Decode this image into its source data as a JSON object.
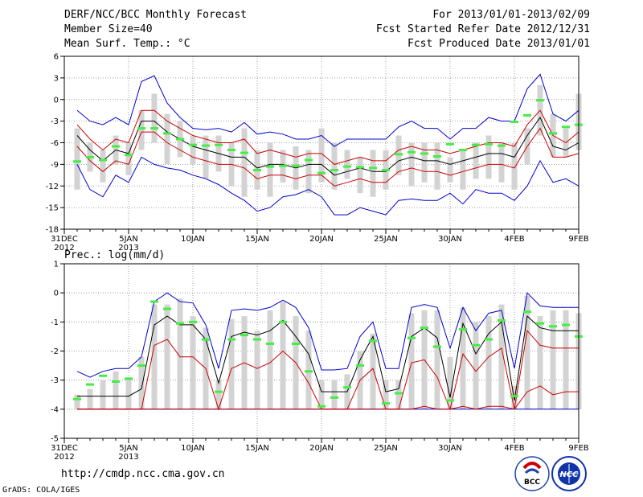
{
  "header": {
    "title": "DERF/NCC/BCC Monthly Forecast",
    "member_size": "Member Size=40",
    "period": "For 2013/01/01-2013/02/09",
    "fcst_started": "Fcst Started Refer Date 2012/12/31",
    "fcst_produced": "Fcst Produced Date 2013/01/01"
  },
  "footer": {
    "url": "http://cmdp.ncc.cma.gov.cn",
    "grads": "GrADS: COLA/IGES",
    "logo_bcc": "BCC",
    "logo_ncc": "NCC"
  },
  "colors": {
    "max_line": "#0000cc",
    "upper_line": "#cc0000",
    "mean_line": "#000000",
    "lower_line": "#cc0000",
    "min_line": "#0000cc",
    "box": "#d3d3d3",
    "marker": "#44ee44"
  },
  "chart_data": [
    {
      "type": "line",
      "title": "Mean Surf. Temp.: °C",
      "xlabel": "",
      "ylabel": "Mean Surf. Temp.: °C",
      "ylim": [
        -18,
        6
      ],
      "yticks": [
        "6",
        "3",
        "0",
        "-3",
        "-6",
        "-9",
        "-12",
        "-15",
        "-18"
      ],
      "yticks_values": [
        6,
        3,
        0,
        -3,
        -6,
        -9,
        -12,
        -15,
        -18
      ],
      "xticks": [
        {
          "day": 0,
          "label": "31DEC",
          "sub": "2012"
        },
        {
          "day": 5,
          "label": "5JAN",
          "sub": "2013"
        },
        {
          "day": 10,
          "label": "10JAN",
          "sub": ""
        },
        {
          "day": 15,
          "label": "15JAN",
          "sub": ""
        },
        {
          "day": 20,
          "label": "20JAN",
          "sub": ""
        },
        {
          "day": 25,
          "label": "25JAN",
          "sub": ""
        },
        {
          "day": 30,
          "label": "30JAN",
          "sub": ""
        },
        {
          "day": 35,
          "label": "4FEB",
          "sub": ""
        },
        {
          "day": 40,
          "label": "9FEB",
          "sub": ""
        }
      ],
      "x_days": [
        1,
        2,
        3,
        4,
        5,
        6,
        7,
        8,
        9,
        10,
        11,
        12,
        13,
        14,
        15,
        16,
        17,
        18,
        19,
        20,
        21,
        22,
        23,
        24,
        25,
        26,
        27,
        28,
        29,
        30,
        31,
        32,
        33,
        34,
        35,
        36,
        37,
        38,
        39,
        40
      ],
      "series": [
        {
          "name": "max",
          "values": [
            -1.5,
            -3,
            -3.5,
            -2.5,
            -3.5,
            2.5,
            3.3,
            -0.5,
            -2.5,
            -4,
            -4.2,
            -4,
            -4.5,
            -3.2,
            -4.8,
            -4.5,
            -4.8,
            -5.5,
            -5.5,
            -5,
            -6.5,
            -5.5,
            -5.5,
            -5.5,
            -5.5,
            -3.8,
            -3,
            -4,
            -4,
            -5.5,
            -4,
            -4,
            -2.5,
            -3,
            -3,
            1.5,
            3.5,
            -2,
            -3,
            -1.5
          ]
        },
        {
          "name": "upper",
          "values": [
            -3.5,
            -5.5,
            -7,
            -5.5,
            -6,
            -1.5,
            -1.5,
            -3,
            -4,
            -5,
            -5.5,
            -6,
            -6,
            -5.5,
            -7.5,
            -7,
            -7.5,
            -8,
            -7.5,
            -7.5,
            -9,
            -8.5,
            -8,
            -8.5,
            -8.5,
            -7,
            -6.5,
            -7,
            -7,
            -7.5,
            -7,
            -6.5,
            -6,
            -6,
            -6.5,
            -3.5,
            -1.5,
            -5,
            -6,
            -4.5
          ]
        },
        {
          "name": "mean",
          "values": [
            -5,
            -7,
            -8.5,
            -7,
            -7.5,
            -3,
            -3,
            -4.5,
            -5.5,
            -6.5,
            -7,
            -7.5,
            -8,
            -8,
            -9.5,
            -9,
            -9,
            -9.5,
            -9,
            -9,
            -10.5,
            -10,
            -9.5,
            -10,
            -10,
            -8.5,
            -8,
            -8.5,
            -8.5,
            -9,
            -8.5,
            -8,
            -7.5,
            -7.5,
            -8,
            -5,
            -2.5,
            -6.5,
            -7,
            -6
          ]
        },
        {
          "name": "lower",
          "values": [
            -6.5,
            -8.5,
            -10,
            -8.5,
            -9,
            -4.5,
            -4.5,
            -6,
            -7,
            -8,
            -8.5,
            -9,
            -9,
            -9.5,
            -11,
            -10.5,
            -10.5,
            -11,
            -10.5,
            -10.5,
            -12,
            -11.5,
            -11,
            -11.5,
            -11.5,
            -10,
            -9.5,
            -10,
            -10,
            -10.5,
            -10,
            -9.5,
            -9,
            -9,
            -9.5,
            -6.5,
            -4,
            -8,
            -8,
            -7.5
          ]
        },
        {
          "name": "min",
          "values": [
            -9,
            -12.5,
            -13.5,
            -10.5,
            -11.5,
            -8,
            -9,
            -9.5,
            -9.8,
            -10.5,
            -11,
            -11.8,
            -13,
            -14,
            -15.5,
            -15,
            -13.5,
            -13.2,
            -12.5,
            -13.5,
            -16,
            -16,
            -15,
            -15.5,
            -16,
            -14,
            -13.8,
            -14,
            -14,
            -13,
            -14.5,
            -12.5,
            -13,
            -13,
            -14,
            -12,
            -8.5,
            -11.5,
            -11,
            -12
          ]
        },
        {
          "name": "box_top",
          "values": [
            -4,
            -6,
            -7,
            -5,
            -6,
            -1.5,
            0.8,
            -2,
            -3,
            -5,
            -5,
            -5,
            -6,
            -4,
            -7,
            -6,
            -7,
            -6.5,
            -7,
            -4,
            -6,
            -7,
            -8,
            -7,
            -7,
            -5,
            -6,
            -6,
            -6,
            -8,
            -7,
            -6,
            -5,
            -6,
            -6,
            -4,
            2,
            -2,
            -4,
            0.8
          ]
        },
        {
          "name": "box_bottom",
          "values": [
            -12.5,
            -10,
            -11.5,
            -9,
            -10.5,
            -7,
            -6,
            -9,
            -8,
            -9,
            -11,
            -10,
            -12,
            -13.5,
            -12.5,
            -13.5,
            -11.5,
            -12.5,
            -13,
            -11.5,
            -12.5,
            -11,
            -13,
            -13.5,
            -12.5,
            -10.5,
            -12,
            -11.5,
            -12.5,
            -11.5,
            -12.5,
            -11,
            -11,
            -11.5,
            -12.5,
            -9,
            -5,
            -8,
            -8,
            -7
          ]
        },
        {
          "name": "marker",
          "values": [
            -8.6,
            -8,
            -8.4,
            -6.5,
            -7.7,
            -4,
            -4,
            -4.7,
            -5.5,
            -6.3,
            -6.4,
            -6.3,
            -7,
            -7.4,
            -9.8,
            -9.3,
            -9.2,
            -9.2,
            -8.4,
            -10.2,
            -9.8,
            -9.3,
            -9.4,
            -9.5,
            -9.8,
            -7.6,
            -7.3,
            -7.5,
            -7.9,
            -6.2,
            -7,
            -6.3,
            -6.2,
            -6.4,
            -3.1,
            -2.2,
            -0.1,
            -4.7,
            -3.8,
            -3.5
          ]
        }
      ]
    },
    {
      "type": "line",
      "title": "Prec.: log(mm/d)",
      "xlabel": "",
      "ylabel": "Prec.: log(mm/d)",
      "ylim": [
        -5,
        1
      ],
      "yticks": [
        "1",
        "0",
        "-1",
        "-2",
        "-3",
        "-4",
        "-5"
      ],
      "yticks_values": [
        1,
        0,
        -1,
        -2,
        -3,
        -4,
        -5
      ],
      "xticks": [
        {
          "day": 0,
          "label": "31DEC",
          "sub": "2012"
        },
        {
          "day": 5,
          "label": "5JAN",
          "sub": "2013"
        },
        {
          "day": 10,
          "label": "10JAN",
          "sub": ""
        },
        {
          "day": 15,
          "label": "15JAN",
          "sub": ""
        },
        {
          "day": 20,
          "label": "20JAN",
          "sub": ""
        },
        {
          "day": 25,
          "label": "25JAN",
          "sub": ""
        },
        {
          "day": 30,
          "label": "30JAN",
          "sub": ""
        },
        {
          "day": 35,
          "label": "4FEB",
          "sub": ""
        },
        {
          "day": 40,
          "label": "9FEB",
          "sub": ""
        }
      ],
      "x_days": [
        1,
        2,
        3,
        4,
        5,
        6,
        7,
        8,
        9,
        10,
        11,
        12,
        13,
        14,
        15,
        16,
        17,
        18,
        19,
        20,
        21,
        22,
        23,
        24,
        25,
        26,
        27,
        28,
        29,
        30,
        31,
        32,
        33,
        34,
        35,
        36,
        37,
        38,
        39,
        40
      ],
      "series": [
        {
          "name": "max",
          "values": [
            -2.7,
            -2.9,
            -2.7,
            -2.6,
            -2.6,
            -2.2,
            -0.3,
            0.0,
            -0.3,
            -0.35,
            -1.1,
            -2.6,
            -0.6,
            -0.55,
            -0.6,
            -0.5,
            -0.25,
            -0.5,
            -1.2,
            -2.65,
            -2.65,
            -2.6,
            -1.5,
            -1.0,
            -2.6,
            -2.6,
            -0.5,
            -0.4,
            -0.5,
            -1.9,
            -0.5,
            -1.3,
            -0.7,
            -0.6,
            -2.6,
            0.0,
            -0.45,
            -0.5,
            -0.5,
            -0.5
          ]
        },
        {
          "name": "mean",
          "values": [
            -3.55,
            -3.55,
            -3.55,
            -3.55,
            -3.55,
            -3.3,
            -1.1,
            -0.8,
            -1.1,
            -1.1,
            -1.6,
            -3.1,
            -1.5,
            -1.35,
            -1.45,
            -1.3,
            -0.95,
            -1.5,
            -2.1,
            -3.4,
            -3.4,
            -3.4,
            -2.3,
            -1.5,
            -3.4,
            -3.3,
            -1.5,
            -1.2,
            -1.55,
            -3.6,
            -1.05,
            -2.1,
            -1.4,
            -1.0,
            -3.7,
            -0.8,
            -1.2,
            -1.3,
            -1.3,
            -1.3
          ]
        },
        {
          "name": "upper_red",
          "values": [
            -4,
            -4,
            -4,
            -4,
            -4,
            -4,
            -1.8,
            -1.6,
            -2.2,
            -2.2,
            -2.6,
            -4,
            -2.6,
            -2.4,
            -2.6,
            -2.4,
            -2.0,
            -2.4,
            -3.1,
            -4,
            -4,
            -4,
            -3.0,
            -2.6,
            -4,
            -4,
            -2.4,
            -2.3,
            -2.9,
            -4,
            -2.1,
            -2.7,
            -2.2,
            -1.9,
            -4,
            -1.3,
            -1.8,
            -1.9,
            -1.9,
            -1.9
          ]
        },
        {
          "name": "lower_red",
          "values": [
            -4,
            -4,
            -4,
            -4,
            -4,
            -4,
            -4,
            -4,
            -4,
            -4,
            -4,
            -4,
            -4,
            -4,
            -4,
            -4,
            -4,
            -4,
            -4,
            -4,
            -4,
            -4,
            -4,
            -4,
            -4,
            -4,
            -4,
            -3.9,
            -4,
            -4,
            -3.9,
            -4,
            -3.9,
            -3.9,
            -4,
            -3.4,
            -3.2,
            -3.5,
            -3.4,
            -3.4
          ]
        },
        {
          "name": "min",
          "values": [
            -4,
            -4,
            -4,
            -4,
            -4,
            -4,
            -4,
            -4,
            -4,
            -4,
            -4,
            -4,
            -4,
            -4,
            -4,
            -4,
            -4,
            -4,
            -4,
            -4,
            -4,
            -4,
            -4,
            -4,
            -4,
            -4,
            -4,
            -4,
            -4,
            -4,
            -4,
            -4,
            -4,
            -4,
            -4,
            -4,
            -4,
            -4,
            -4,
            -4
          ]
        },
        {
          "name": "box_top",
          "values": [
            -3.5,
            -3.3,
            -3.0,
            -2.7,
            -3.0,
            -2.2,
            -0.4,
            -0.4,
            -0.2,
            -0.8,
            -1.2,
            -3.0,
            -0.9,
            -0.8,
            -1.3,
            -0.6,
            -0.3,
            -0.8,
            -1.3,
            -3.0,
            -3.0,
            -2.8,
            -2.0,
            -1.4,
            -3.0,
            -3.0,
            -0.7,
            -0.6,
            -0.6,
            -2.2,
            -0.5,
            -1.0,
            -0.8,
            -0.4,
            -3.2,
            -0.1,
            -0.8,
            -0.6,
            -0.6,
            -0.7
          ]
        },
        {
          "name": "box_bottom",
          "values": [
            -4,
            -4,
            -4,
            -4,
            -4,
            -4,
            -4,
            -4,
            -4,
            -4,
            -4,
            -4,
            -4,
            -4,
            -4,
            -4,
            -4,
            -4,
            -4,
            -4,
            -4,
            -4,
            -4,
            -4,
            -4,
            -4,
            -4,
            -4,
            -4,
            -4,
            -4,
            -4,
            -4,
            -4,
            -4,
            -4,
            -4,
            -4,
            -4,
            -4
          ]
        },
        {
          "name": "marker",
          "values": [
            -3.65,
            -3.15,
            -2.85,
            -3.05,
            -2.95,
            -2.5,
            -0.3,
            -0.55,
            -1.05,
            -1.0,
            -1.6,
            -3.4,
            -1.6,
            -1.45,
            -1.6,
            -1.75,
            -1.0,
            -1.75,
            -2.7,
            -3.9,
            -3.6,
            -3.25,
            -2.5,
            -1.65,
            -3.8,
            -3.45,
            -1.55,
            -1.2,
            -1.85,
            -3.7,
            -1.25,
            -1.8,
            -1.6,
            -0.95,
            -3.55,
            -0.65,
            -1.05,
            -1.15,
            -1.1,
            -1.5
          ]
        }
      ]
    }
  ]
}
